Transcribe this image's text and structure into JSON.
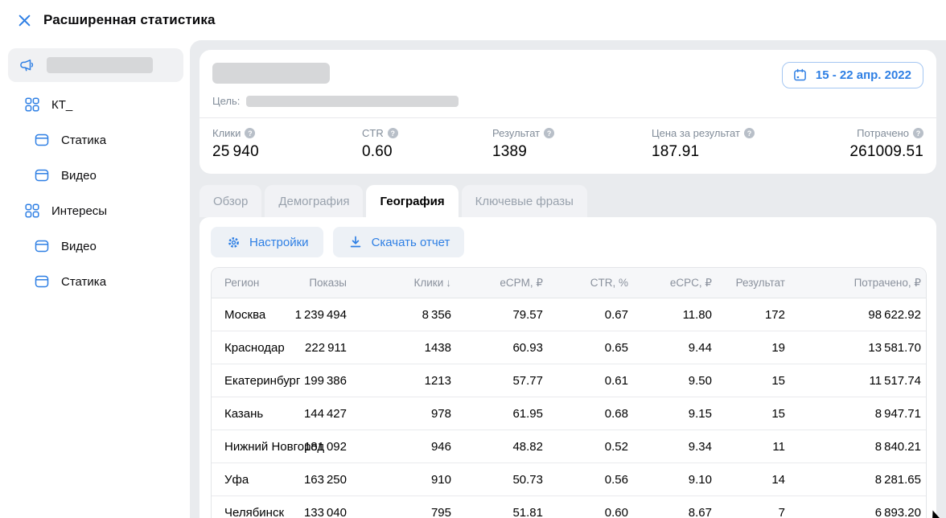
{
  "colors": {
    "accent": "#2e7fe4",
    "page_bg": "#e9ebee",
    "card_bg": "#ffffff",
    "muted_text": "#818c99",
    "table_border": "#e3e5e8",
    "redacted": "#d6d7d9"
  },
  "header": {
    "title": "Расширенная статистика"
  },
  "sidebar": {
    "items": [
      {
        "slug": "campaign",
        "icon": "megaphone",
        "redacted": true,
        "selected": true,
        "level": 0,
        "label": ""
      },
      {
        "slug": "kt",
        "icon": "grid",
        "label": "КТ_",
        "level": 0
      },
      {
        "slug": "statika",
        "icon": "banner",
        "label": "Статика",
        "level": 1
      },
      {
        "slug": "video",
        "icon": "banner",
        "label": "Видео",
        "level": 1
      },
      {
        "slug": "interesy",
        "icon": "grid",
        "label": "Интересы",
        "level": 0
      },
      {
        "slug": "video-2",
        "icon": "banner",
        "label": "Видео",
        "level": 1
      },
      {
        "slug": "statika-2",
        "icon": "banner",
        "label": "Статика",
        "level": 1
      }
    ]
  },
  "summary": {
    "goal_label": "Цель:",
    "date_range": "15 - 22 апр. 2022",
    "metrics": [
      {
        "slug": "kliki",
        "label": "Клики",
        "value": "25 940"
      },
      {
        "slug": "ctr",
        "label": "CTR",
        "value": "0.60"
      },
      {
        "slug": "rezultat",
        "label": "Результат",
        "value": "1389"
      },
      {
        "slug": "cena-za-rezultat",
        "label": "Цена за результат",
        "value": "187.91"
      },
      {
        "slug": "potracheno",
        "label": "Потрачено",
        "value": "261009.51"
      }
    ]
  },
  "tabs": [
    {
      "slug": "obzor",
      "label": "Обзор",
      "active": false
    },
    {
      "slug": "demografiya",
      "label": "Демография",
      "active": false
    },
    {
      "slug": "geografiya",
      "label": "География",
      "active": true
    },
    {
      "slug": "klyuchevye-frazy",
      "label": "Ключевые фразы",
      "active": false
    }
  ],
  "toolbar": {
    "settings_label": "Настройки",
    "download_label": "Скачать отчет"
  },
  "table": {
    "sort": {
      "column": "Клики",
      "arrow": "↓"
    },
    "column_slugs": [
      "region",
      "pokazy",
      "kliki",
      "ecpm",
      "ctr",
      "ecpc",
      "rezultat",
      "potracheno"
    ],
    "columns": [
      "Регион",
      "Показы",
      "Клики",
      "eCPM, ₽",
      "CTR, %",
      "eCPC, ₽",
      "Результат",
      "Потрачено, ₽"
    ],
    "rows": [
      [
        "Москва",
        "1 239 494",
        "8 356",
        "79.57",
        "0.67",
        "11.80",
        "172",
        "98 622.92"
      ],
      [
        "Краснодар",
        "222 911",
        "1438",
        "60.93",
        "0.65",
        "9.44",
        "19",
        "13 581.70"
      ],
      [
        "Екатеринбург",
        "199 386",
        "1213",
        "57.77",
        "0.61",
        "9.50",
        "15",
        "11 517.74"
      ],
      [
        "Казань",
        "144 427",
        "978",
        "61.95",
        "0.68",
        "9.15",
        "15",
        "8 947.71"
      ],
      [
        "Нижний Новгород",
        "181 092",
        "946",
        "48.82",
        "0.52",
        "9.34",
        "11",
        "8 840.21"
      ],
      [
        "Уфа",
        "163 250",
        "910",
        "50.73",
        "0.56",
        "9.10",
        "14",
        "8 281.65"
      ],
      [
        "Челябинск",
        "133 040",
        "795",
        "51.81",
        "0.60",
        "8.67",
        "7",
        "6 893.20"
      ]
    ]
  }
}
